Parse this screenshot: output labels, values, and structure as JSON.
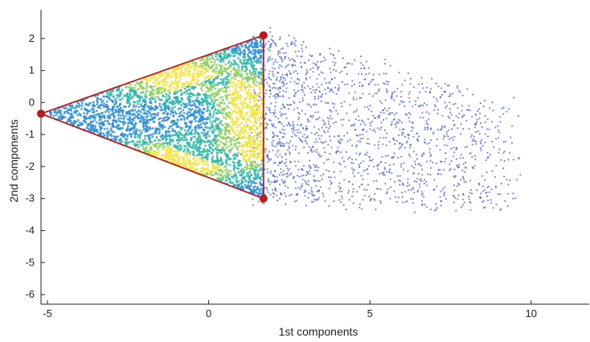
{
  "chart_data": {
    "type": "scatter",
    "title": "",
    "xlabel": "1st components",
    "ylabel": "2nd components",
    "xlim": [
      -5.2,
      11.8
    ],
    "ylim": [
      -6.3,
      2.9
    ],
    "xticks": [
      -5,
      0,
      5,
      10
    ],
    "yticks": [
      2,
      1,
      0,
      -1,
      -2,
      -3,
      -4,
      -5,
      -6
    ],
    "grid": false,
    "legend": "none",
    "density_colormap": [
      "#3b5bd6",
      "#2c8fd8",
      "#2db9a7",
      "#8cd15a",
      "#f5e33a"
    ],
    "scatter_color": "#3f58d8",
    "simplex_color": "#c0181b",
    "series": [
      {
        "type": "line",
        "vertices": [
          {
            "x": -5.2,
            "y": -0.35
          },
          {
            "x": 1.7,
            "y": 2.1
          },
          {
            "x": 1.7,
            "y": -3.0
          }
        ]
      }
    ]
  }
}
